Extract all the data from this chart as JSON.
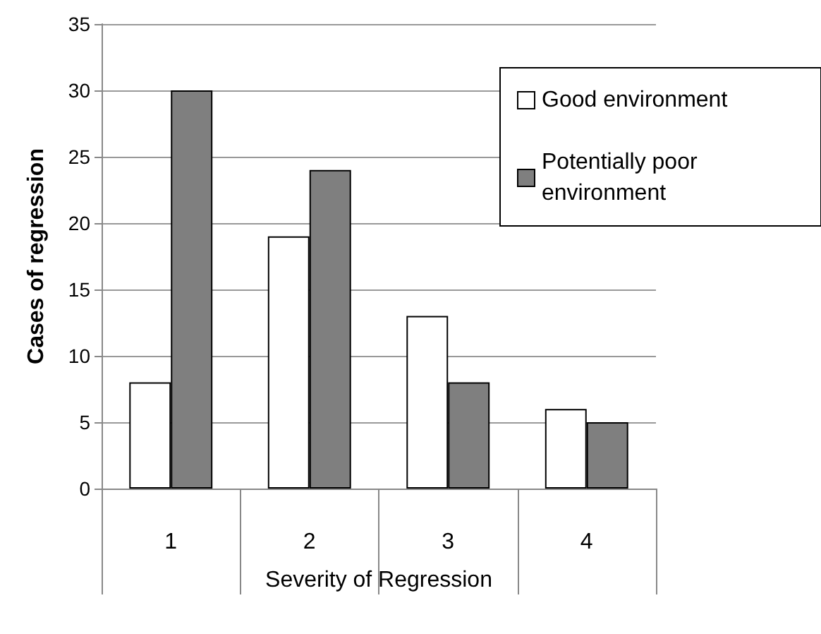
{
  "chart_data": {
    "type": "bar",
    "xlabel": "Severity of Regression",
    "ylabel": "Cases of regression",
    "categories": [
      "1",
      "2",
      "3",
      "4"
    ],
    "series": [
      {
        "name": "Good environment",
        "color": "#ffffff",
        "values": [
          8,
          19,
          13,
          6
        ]
      },
      {
        "name": "Potentially poor environment",
        "color": "#7f7f7f",
        "values": [
          30,
          24,
          8,
          5
        ]
      }
    ],
    "ylim": [
      0,
      35
    ],
    "yticks": [
      0,
      5,
      10,
      15,
      20,
      25,
      30,
      35
    ],
    "grid": "y",
    "legend": "top right"
  }
}
